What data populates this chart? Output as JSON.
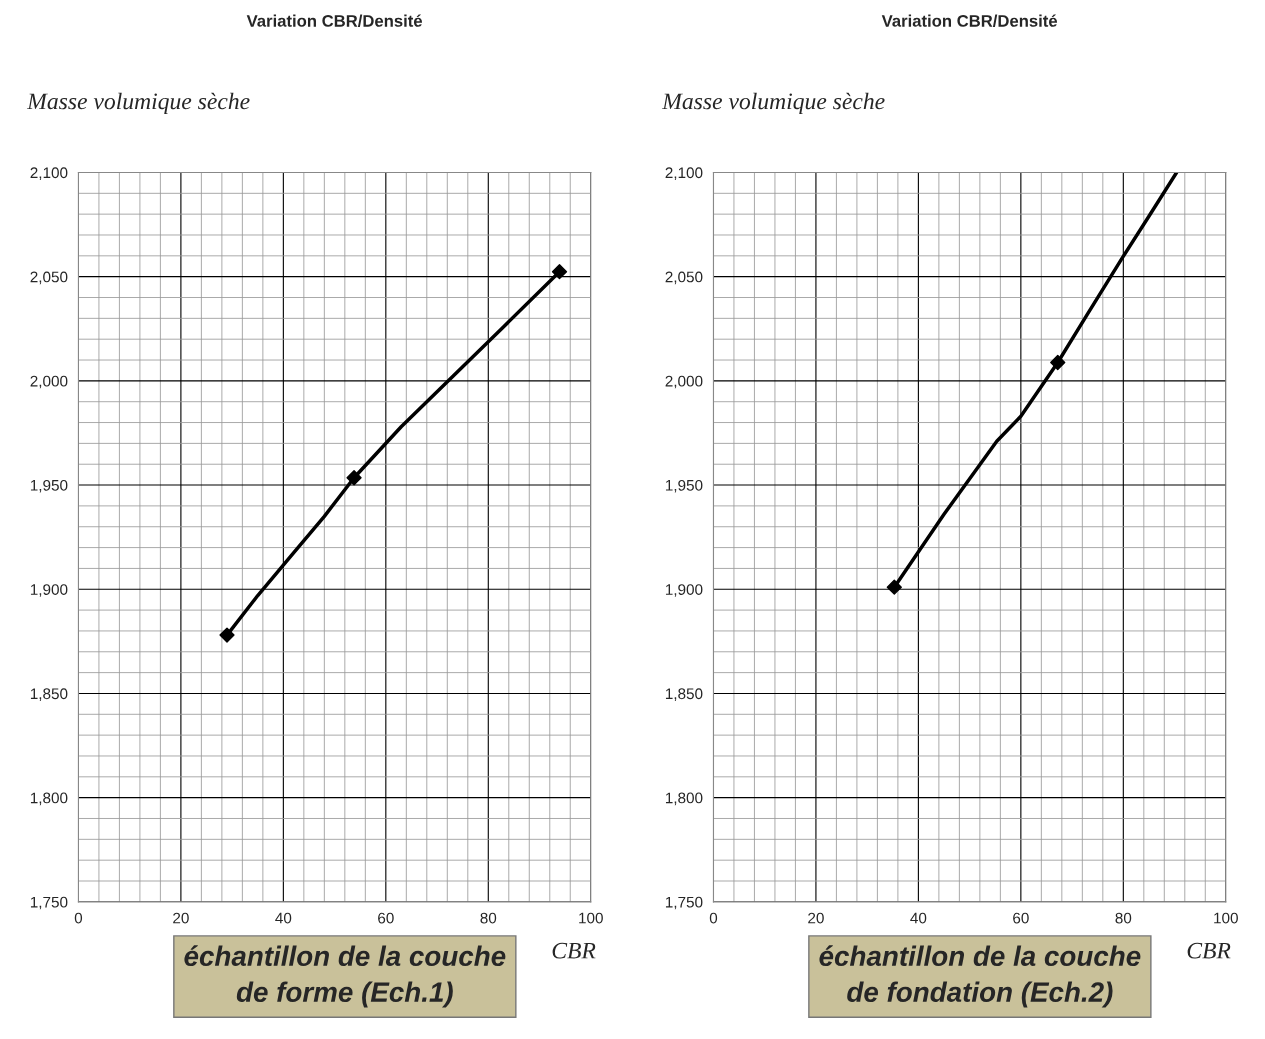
{
  "chart_data": [
    {
      "type": "line",
      "title": "Variation CBR/Densité",
      "ylabel": "Masse volumique sèche",
      "xlabel": "CBR",
      "xlim": [
        0,
        100
      ],
      "xticks": [
        0,
        20,
        40,
        60,
        80,
        100
      ],
      "ylim": [
        1750,
        2100
      ],
      "yticks": [
        {
          "value": 1750,
          "label": "1,750"
        },
        {
          "value": 1800,
          "label": "1,800"
        },
        {
          "value": 1850,
          "label": "1,850"
        },
        {
          "value": 1900,
          "label": "1,900"
        },
        {
          "value": 1950,
          "label": "1,950"
        },
        {
          "value": 2000,
          "label": "2,000"
        },
        {
          "value": 2050,
          "label": "2,050"
        },
        {
          "value": 2100,
          "label": "2,100"
        }
      ],
      "grid": true,
      "series": [
        {
          "color": "#000000",
          "marker": "none",
          "x": [
            29,
            35,
            41.5,
            48,
            53.8,
            63,
            73.2,
            83,
            93.9
          ],
          "values": [
            1878,
            1897,
            1916,
            1935,
            1953.5,
            1978,
            2002.5,
            2026,
            2052.4
          ]
        },
        {
          "type": "scatter",
          "color": "#000000",
          "marker": "diamond",
          "x": [
            29,
            53.8,
            93.9
          ],
          "values": [
            1878,
            1953.5,
            2052.4
          ]
        }
      ],
      "annotations": [
        "échantillon de la couche\nde forme (Ech.1)"
      ]
    },
    {
      "type": "line",
      "title": "Variation CBR/Densité",
      "ylabel": "Masse volumique sèche",
      "xlabel": "CBR",
      "xlim": [
        0,
        100
      ],
      "xticks": [
        0,
        20,
        40,
        60,
        80,
        100
      ],
      "ylim": [
        1750,
        2100
      ],
      "yticks": [
        {
          "value": 1750,
          "label": "1,750"
        },
        {
          "value": 1800,
          "label": "1,800"
        },
        {
          "value": 1850,
          "label": "1,850"
        },
        {
          "value": 1900,
          "label": "1,900"
        },
        {
          "value": 1950,
          "label": "1,950"
        },
        {
          "value": 2000,
          "label": "2,000"
        },
        {
          "value": 2050,
          "label": "2,050"
        },
        {
          "value": 2100,
          "label": "2,100"
        }
      ],
      "grid": true,
      "series": [
        {
          "color": "#000000",
          "marker": "none",
          "x": [
            35.3,
            45,
            55.3,
            60,
            67.2,
            73,
            79.8,
            85,
            90.4
          ],
          "values": [
            1901,
            1936,
            1971,
            1983,
            2008.8,
            2032,
            2059,
            2079,
            2100
          ]
        },
        {
          "type": "scatter",
          "color": "#000000",
          "marker": "diamond",
          "x": [
            35.3,
            67.2
          ],
          "values": [
            1901,
            2008.8
          ]
        }
      ],
      "annotations": [
        "échantillon de la couche\nde fondation (Ech.2)"
      ]
    }
  ]
}
